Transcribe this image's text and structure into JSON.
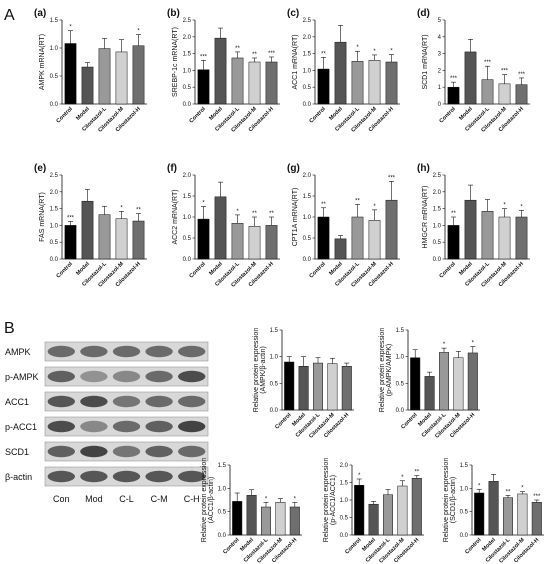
{
  "figure": {
    "section_a": "A",
    "section_b": "B"
  },
  "blot": {
    "rows": [
      "AMPK",
      "p-AMPK",
      "ACC1",
      "p-ACC1",
      "SCD1",
      "β-actin"
    ],
    "lanes": [
      "Con",
      "Mod",
      "C-L",
      "C-M",
      "C-H"
    ],
    "band_intensity": [
      [
        0.55,
        0.55,
        0.55,
        0.55,
        0.55
      ],
      [
        0.6,
        0.35,
        0.4,
        0.55,
        0.7
      ],
      [
        0.65,
        0.7,
        0.5,
        0.55,
        0.55
      ],
      [
        0.7,
        0.4,
        0.55,
        0.6,
        0.75
      ],
      [
        0.6,
        0.75,
        0.5,
        0.6,
        0.55
      ],
      [
        0.65,
        0.65,
        0.65,
        0.65,
        0.65
      ]
    ]
  },
  "chart_data": [
    {
      "type": "bar",
      "panel": "(a)",
      "ylabel": "AMPK mRNA(RT)",
      "ylim": [
        0,
        1.5
      ],
      "yticks": [
        0.0,
        0.5,
        1.0,
        1.5
      ],
      "categories": [
        "Control",
        "Model",
        "Cilostazol-L",
        "Cilostazol-M",
        "Cilostazol-H"
      ],
      "values": [
        1.08,
        0.66,
        0.99,
        0.93,
        1.04
      ],
      "errors": [
        0.23,
        0.08,
        0.18,
        0.22,
        0.2
      ],
      "significance": [
        "*",
        "",
        "",
        "",
        "*"
      ]
    },
    {
      "type": "bar",
      "panel": "(b)",
      "ylabel": "SREBP-1c mRNA(RT)",
      "ylim": [
        0,
        2.5
      ],
      "yticks": [
        0.0,
        0.5,
        1.0,
        1.5,
        2.0,
        2.5
      ],
      "categories": [
        "Control",
        "Model",
        "Cilostazol-L",
        "Cilostazol-M",
        "Cilostazol-H"
      ],
      "values": [
        1.02,
        1.96,
        1.37,
        1.25,
        1.25
      ],
      "errors": [
        0.28,
        0.3,
        0.18,
        0.12,
        0.15
      ],
      "significance": [
        "***",
        "",
        "**",
        "**",
        "***"
      ]
    },
    {
      "type": "bar",
      "panel": "(c)",
      "ylabel": "ACC1 mRNA(RT)",
      "ylim": [
        0,
        2.5
      ],
      "yticks": [
        0.0,
        0.5,
        1.0,
        1.5,
        2.0,
        2.5
      ],
      "categories": [
        "Control",
        "Model",
        "Cilostazol-L",
        "Cilostazol-M",
        "Cilostazol-H"
      ],
      "values": [
        1.04,
        1.84,
        1.27,
        1.3,
        1.25
      ],
      "errors": [
        0.35,
        0.5,
        0.3,
        0.16,
        0.22
      ],
      "significance": [
        "**",
        "",
        "*",
        "*",
        "*"
      ]
    },
    {
      "type": "bar",
      "panel": "(d)",
      "ylabel": "SCD1 mRNA(RT)",
      "ylim": [
        0,
        5
      ],
      "yticks": [
        0,
        1,
        2,
        3,
        4,
        5
      ],
      "categories": [
        "Control",
        "Model",
        "Cilostazol-L",
        "Cilostazol-M",
        "Cilostazol-H"
      ],
      "values": [
        1.0,
        3.1,
        1.45,
        1.2,
        1.15
      ],
      "errors": [
        0.3,
        0.75,
        0.8,
        0.55,
        0.4
      ],
      "significance": [
        "***",
        "",
        "***",
        "***",
        "***"
      ]
    },
    {
      "type": "bar",
      "panel": "(e)",
      "ylabel": "FAS mRNA(RT)",
      "ylim": [
        0,
        2.5
      ],
      "yticks": [
        0.0,
        0.5,
        1.0,
        1.5,
        2.0,
        2.5
      ],
      "categories": [
        "Control",
        "Model",
        "Cilostazol-L",
        "Cilostazol-M",
        "Cilostazol-H"
      ],
      "values": [
        1.0,
        1.72,
        1.32,
        1.2,
        1.13
      ],
      "errors": [
        0.12,
        0.35,
        0.25,
        0.22,
        0.22
      ],
      "significance": [
        "***",
        "",
        "",
        "*",
        "**"
      ]
    },
    {
      "type": "bar",
      "panel": "(f)",
      "ylabel": "ACC2 mRNA(RT)",
      "ylim": [
        0,
        2.0
      ],
      "yticks": [
        0.0,
        0.5,
        1.0,
        1.5,
        2.0
      ],
      "categories": [
        "Control",
        "Model",
        "Cilostazol-L",
        "Cilostazol-M",
        "Cilostazol-H"
      ],
      "values": [
        0.95,
        1.48,
        0.85,
        0.78,
        0.8
      ],
      "errors": [
        0.3,
        0.35,
        0.2,
        0.22,
        0.2
      ],
      "significance": [
        "*",
        "",
        "*",
        "**",
        "**"
      ]
    },
    {
      "type": "bar",
      "panel": "(g)",
      "ylabel": "CPT1A mRNA(RT)",
      "ylim": [
        0,
        2.0
      ],
      "yticks": [
        0.0,
        0.5,
        1.0,
        1.5,
        2.0
      ],
      "categories": [
        "Control",
        "Model",
        "Cilostazol-L",
        "Cilostazol-M",
        "Cilostazol-H"
      ],
      "values": [
        1.0,
        0.48,
        1.0,
        0.92,
        1.4
      ],
      "errors": [
        0.22,
        0.08,
        0.3,
        0.25,
        0.45
      ],
      "significance": [
        "**",
        "",
        "**",
        "*",
        "***"
      ]
    },
    {
      "type": "bar",
      "panel": "(h)",
      "ylabel": "HMGCR mRNA(RT)",
      "ylim": [
        0,
        2.5
      ],
      "yticks": [
        0.0,
        0.5,
        1.0,
        1.5,
        2.0,
        2.5
      ],
      "categories": [
        "Control",
        "Model",
        "Cilostazol-L",
        "Cilostazol-M",
        "Cilostazol-H"
      ],
      "values": [
        1.0,
        1.75,
        1.42,
        1.25,
        1.25
      ],
      "errors": [
        0.25,
        0.45,
        0.35,
        0.25,
        0.2
      ],
      "significance": [
        "**",
        "",
        "",
        "*",
        "*"
      ]
    },
    {
      "type": "bar",
      "panel": "",
      "ylabel": "Relative protein expression (AMPK/β-actin)",
      "ylim": [
        0,
        1.5
      ],
      "yticks": [
        0.0,
        0.5,
        1.0,
        1.5
      ],
      "categories": [
        "Control",
        "Model",
        "Cilostazol-L",
        "Cilostazol-M",
        "Cilostazol-H"
      ],
      "values": [
        0.9,
        0.82,
        0.88,
        0.87,
        0.82
      ],
      "errors": [
        0.1,
        0.18,
        0.1,
        0.1,
        0.06
      ],
      "significance": [
        "",
        "",
        "",
        "",
        ""
      ]
    },
    {
      "type": "bar",
      "panel": "",
      "ylabel": "Relative protein expression (p-AMPK/AMPK)",
      "ylim": [
        0,
        1.5
      ],
      "yticks": [
        0.0,
        0.5,
        1.0,
        1.5
      ],
      "categories": [
        "Control",
        "Model",
        "Cilostazol-L",
        "Cilostazol-M",
        "Cilostazol-H"
      ],
      "values": [
        0.98,
        0.63,
        1.08,
        0.98,
        1.07
      ],
      "errors": [
        0.15,
        0.08,
        0.08,
        0.12,
        0.12
      ],
      "significance": [
        "",
        "",
        "*",
        "",
        "*"
      ]
    },
    {
      "type": "bar",
      "panel": "",
      "ylabel": "Relative protein expression (ACC1/β-actin)",
      "ylim": [
        0,
        1.5
      ],
      "yticks": [
        0.0,
        0.5,
        1.0,
        1.5
      ],
      "categories": [
        "Control",
        "Model",
        "Cilostazol-L",
        "Cilostazol-M",
        "Cilostazol-H"
      ],
      "values": [
        0.72,
        0.85,
        0.6,
        0.7,
        0.6
      ],
      "errors": [
        0.18,
        0.12,
        0.1,
        0.08,
        0.1
      ],
      "significance": [
        "",
        "",
        "*",
        "",
        "*"
      ]
    },
    {
      "type": "bar",
      "panel": "",
      "ylabel": "Relative protein expression (p-ACC1/ACC1)",
      "ylim": [
        0,
        2.0
      ],
      "yticks": [
        0.0,
        0.5,
        1.0,
        1.5,
        2.0
      ],
      "categories": [
        "Control",
        "Model",
        "Cilostazol-L",
        "Cilostazol-M",
        "Cilostazol-H"
      ],
      "values": [
        1.42,
        0.88,
        1.15,
        1.4,
        1.62
      ],
      "errors": [
        0.18,
        0.08,
        0.15,
        0.15,
        0.08
      ],
      "significance": [
        "*",
        "",
        "",
        "*",
        "**"
      ]
    },
    {
      "type": "bar",
      "panel": "",
      "ylabel": "Relative protein expression (SCD1/β-actin)",
      "ylim": [
        0,
        1.5
      ],
      "yticks": [
        0.0,
        0.5,
        1.0,
        1.5
      ],
      "categories": [
        "Control",
        "Model",
        "Cilostazol-L",
        "Cilostazol-M",
        "Cilostazol-H"
      ],
      "values": [
        0.9,
        1.15,
        0.8,
        0.88,
        0.7
      ],
      "errors": [
        0.08,
        0.15,
        0.05,
        0.05,
        0.05
      ],
      "significance": [
        "*",
        "",
        "**",
        "*",
        "***"
      ]
    }
  ],
  "colors": {
    "bars": [
      "#000000",
      "#555555",
      "#999999",
      "#d0d0d0",
      "#6f6f6f"
    ],
    "axis": "#111111"
  }
}
